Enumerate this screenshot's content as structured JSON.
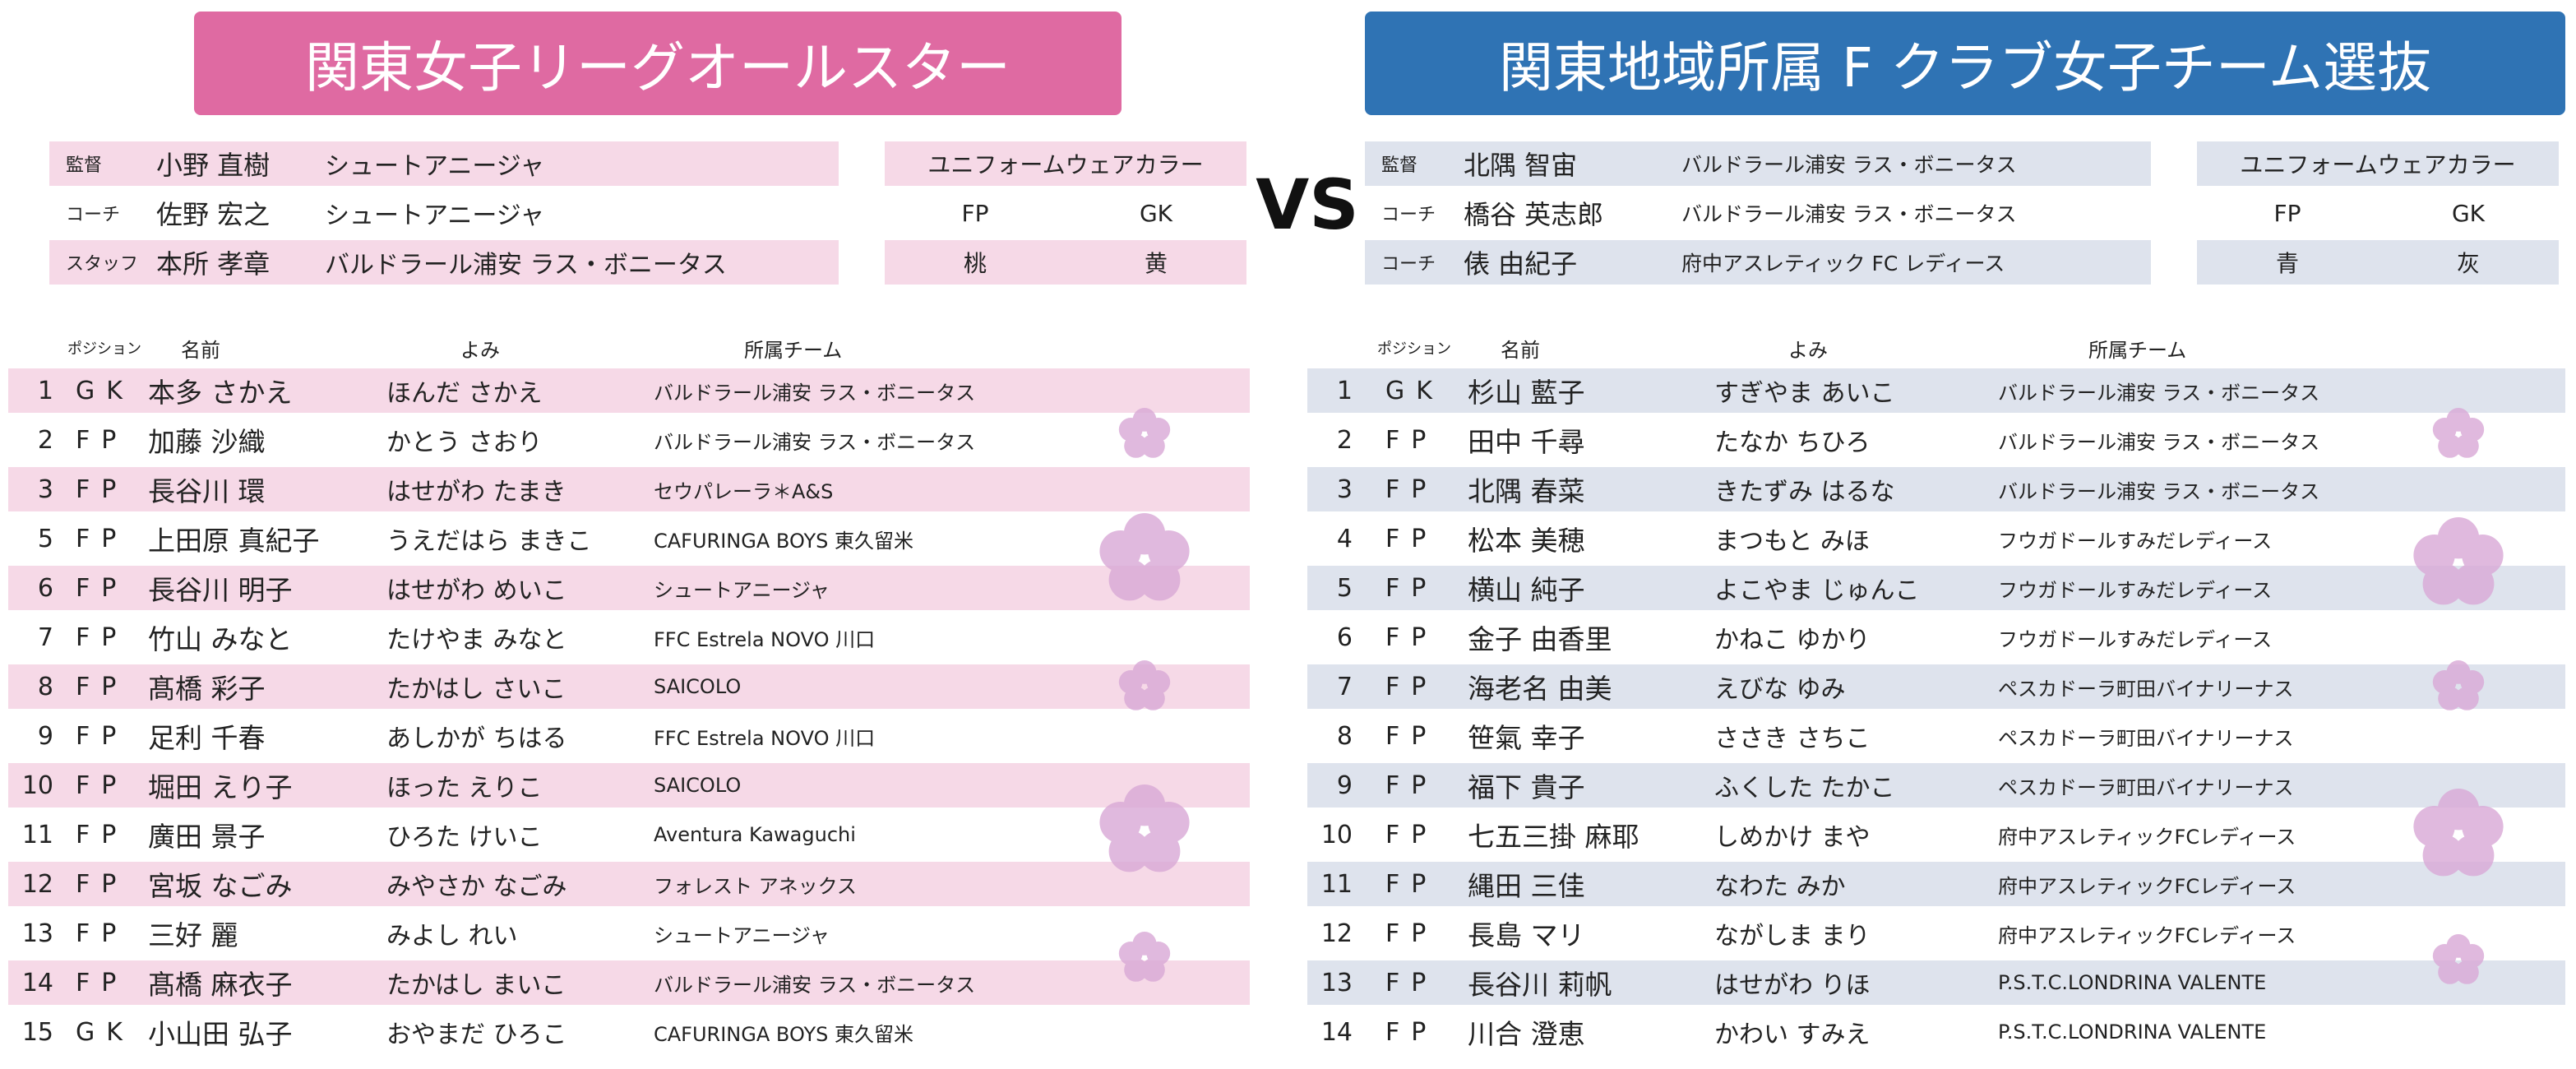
{
  "left": {
    "title": "関東女子リーグオールスター",
    "staff": [
      {
        "role": "監督",
        "name": "小野 直樹",
        "club": "シュートアニージャ"
      },
      {
        "role": "コーチ",
        "name": "佐野 宏之",
        "club": "シュートアニージャ"
      },
      {
        "role": "スタッフ",
        "name": "本所 孝章",
        "club": "バルドラール浦安 ラス・ボニータス"
      }
    ],
    "uniform": {
      "header": "ユニフォームウェアカラー",
      "labels": [
        "FP",
        "GK"
      ],
      "colors": [
        "桃",
        "黄"
      ]
    },
    "roster": {
      "headers": [
        "ポジション",
        "名前",
        "よみ",
        "所属チーム"
      ],
      "rows": [
        [
          "1",
          "GK",
          "本多 さかえ",
          "ほんだ さかえ",
          "バルドラール浦安 ラス・ボニータス"
        ],
        [
          "2",
          "FP",
          "加藤 沙織",
          "かとう さおり",
          "バルドラール浦安 ラス・ボニータス"
        ],
        [
          "3",
          "FP",
          "長谷川 環",
          "はせがわ たまき",
          "セウパレーラ＊A&S"
        ],
        [
          "5",
          "FP",
          "上田原 真紀子",
          "うえだはら まきこ",
          "CAFURINGA BOYS 東久留米"
        ],
        [
          "6",
          "FP",
          "長谷川 明子",
          "はせがわ めいこ",
          "シュートアニージャ"
        ],
        [
          "7",
          "FP",
          "竹山 みなと",
          "たけやま みなと",
          "FFC Estrela NOVO 川口"
        ],
        [
          "8",
          "FP",
          "髙橋 彩子",
          "たかはし さいこ",
          "SAICOLO"
        ],
        [
          "9",
          "FP",
          "足利 千春",
          "あしかが ちはる",
          "FFC Estrela NOVO 川口"
        ],
        [
          "10",
          "FP",
          "堀田 えり子",
          "ほった えりこ",
          "SAICOLO"
        ],
        [
          "11",
          "FP",
          "廣田 景子",
          "ひろた けいこ",
          "Aventura Kawaguchi"
        ],
        [
          "12",
          "FP",
          "宮坂 なごみ",
          "みやさか なごみ",
          "フォレスト アネックス"
        ],
        [
          "13",
          "FP",
          "三好 麗",
          "みよし れい",
          "シュートアニージャ"
        ],
        [
          "14",
          "FP",
          "髙橋 麻衣子",
          "たかはし まいこ",
          "バルドラール浦安 ラス・ボニータス"
        ],
        [
          "15",
          "GK",
          "小山田 弘子",
          "おやまだ ひろこ",
          "CAFURINGA BOYS 東久留米"
        ]
      ]
    }
  },
  "vs": "VS",
  "right": {
    "title": "関東地域所属 F クラブ女子チーム選抜",
    "staff": [
      {
        "role": "監督",
        "name": "北隅 智宙",
        "club": "バルドラール浦安 ラス・ボニータス"
      },
      {
        "role": "コーチ",
        "name": "橋谷 英志郎",
        "club": "バルドラール浦安 ラス・ボニータス"
      },
      {
        "role": "コーチ",
        "name": "俵 由紀子",
        "club": "府中アスレティック FC レディース"
      }
    ],
    "uniform": {
      "header": "ユニフォームウェアカラー",
      "labels": [
        "FP",
        "GK"
      ],
      "colors": [
        "青",
        "灰"
      ]
    },
    "roster": {
      "headers": [
        "ポジション",
        "名前",
        "よみ",
        "所属チーム"
      ],
      "rows": [
        [
          "1",
          "GK",
          "杉山 藍子",
          "すぎやま あいこ",
          "バルドラール浦安 ラス・ボニータス"
        ],
        [
          "2",
          "FP",
          "田中 千尋",
          "たなか ちひろ",
          "バルドラール浦安 ラス・ボニータス"
        ],
        [
          "3",
          "FP",
          "北隅 春菜",
          "きたずみ はるな",
          "バルドラール浦安 ラス・ボニータス"
        ],
        [
          "4",
          "FP",
          "松本 美穂",
          "まつもと みほ",
          "フウガドールすみだレディース"
        ],
        [
          "5",
          "FP",
          "横山 純子",
          "よこやま じゅんこ",
          "フウガドールすみだレディース"
        ],
        [
          "6",
          "FP",
          "金子 由香里",
          "かねこ ゆかり",
          "フウガドールすみだレディース"
        ],
        [
          "7",
          "FP",
          "海老名 由美",
          "えびな ゆみ",
          "ペスカドーラ町田バイナリーナス"
        ],
        [
          "8",
          "FP",
          "笹氣 幸子",
          "ささき さちこ",
          "ペスカドーラ町田バイナリーナス"
        ],
        [
          "9",
          "FP",
          "福下 貴子",
          "ふくした たかこ",
          "ペスカドーラ町田バイナリーナス"
        ],
        [
          "10",
          "FP",
          "七五三掛 麻耶",
          "しめかけ まや",
          "府中アスレティックFCレディース"
        ],
        [
          "11",
          "FP",
          "縄田 三佳",
          "なわた みか",
          "府中アスレティックFCレディース"
        ],
        [
          "12",
          "FP",
          "長島 マリ",
          "ながしま まり",
          "府中アスレティックFCレディース"
        ],
        [
          "13",
          "FP",
          "長谷川 莉帆",
          "はせがわ りほ",
          "P.S.T.C.LONDRINA VALENTE"
        ],
        [
          "14",
          "FP",
          "川合 澄恵",
          "かわい すみえ",
          "P.S.T.C.LONDRINA VALENTE"
        ]
      ]
    }
  }
}
